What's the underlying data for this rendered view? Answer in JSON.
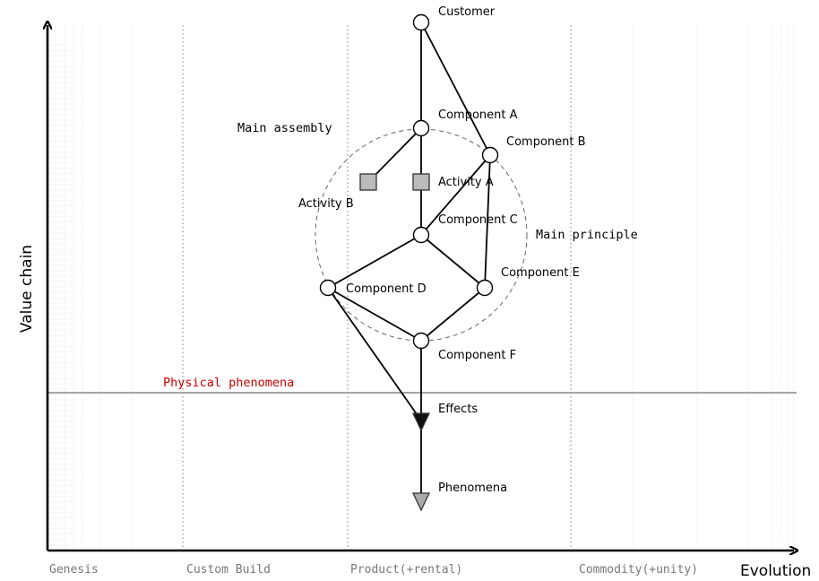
{
  "axes": {
    "y_label": "Value chain",
    "x_label": "Evolution"
  },
  "stages": [
    "Genesis",
    "Custom Build",
    "Product(+rental)",
    "Commodity(+unity)"
  ],
  "annotations": {
    "main_assembly": "Main assembly",
    "main_principle": "Main principle",
    "physical_phenomena": "Physical phenomena"
  },
  "nodes": [
    {
      "id": "customer",
      "label": "Customer",
      "shape": "circle"
    },
    {
      "id": "component_a",
      "label": "Component A",
      "shape": "circle"
    },
    {
      "id": "component_b",
      "label": "Component B",
      "shape": "circle"
    },
    {
      "id": "activity_a",
      "label": "Activity A",
      "shape": "square"
    },
    {
      "id": "activity_b",
      "label": "Activity B",
      "shape": "square"
    },
    {
      "id": "component_c",
      "label": "Component C",
      "shape": "circle"
    },
    {
      "id": "component_d",
      "label": "Component D",
      "shape": "circle"
    },
    {
      "id": "component_e",
      "label": "Component E",
      "shape": "circle"
    },
    {
      "id": "component_f",
      "label": "Component F",
      "shape": "circle"
    },
    {
      "id": "effects",
      "label": "Effects",
      "shape": "triangle-dark"
    },
    {
      "id": "phenomena",
      "label": "Phenomena",
      "shape": "triangle-light"
    }
  ],
  "edges": [
    [
      "customer",
      "component_a"
    ],
    [
      "customer",
      "component_b"
    ],
    [
      "component_a",
      "activity_a"
    ],
    [
      "component_a",
      "activity_b"
    ],
    [
      "activity_a",
      "component_c"
    ],
    [
      "component_b",
      "component_c"
    ],
    [
      "component_b",
      "component_e"
    ],
    [
      "component_c",
      "component_d"
    ],
    [
      "component_c",
      "component_e"
    ],
    [
      "component_d",
      "component_f"
    ],
    [
      "component_e",
      "component_f"
    ],
    [
      "component_d",
      "effects"
    ],
    [
      "component_f",
      "effects"
    ],
    [
      "effects",
      "phenomena"
    ]
  ],
  "colors": {
    "phenomena_label": "#cc0000",
    "node_fill": "#ffffff",
    "activity_fill": "#bbbbbb",
    "effects_fill": "#111111",
    "phenomena_fill": "#aaaaaa"
  }
}
